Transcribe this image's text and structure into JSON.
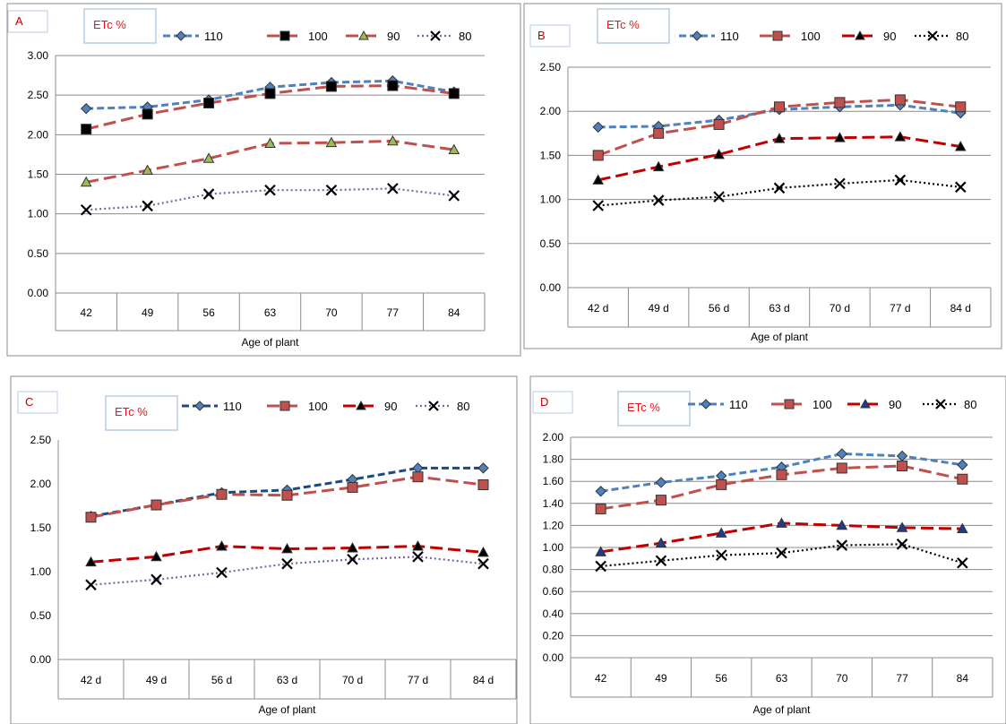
{
  "panels": [
    {
      "panel_label": "A",
      "legend_title": "ETc %",
      "chart_data": {
        "type": "line",
        "categories": [
          "42",
          "49",
          "56",
          "63",
          "70",
          "77",
          "84"
        ],
        "xlabel": "Age of plant",
        "ylabel": "",
        "ylim": [
          0,
          3
        ],
        "yticks": [
          "0.00",
          "0.50",
          "1.00",
          "1.50",
          "2.00",
          "2.50",
          "3.00"
        ],
        "grid": true,
        "legend_position": "top",
        "series": [
          {
            "name": "110",
            "values": [
              2.33,
              2.35,
              2.44,
              2.6,
              2.66,
              2.68,
              2.54
            ],
            "color": "#4f81bd",
            "marker": "diamond",
            "dash": "dash",
            "markerFill": "#4f81bd"
          },
          {
            "name": "100",
            "values": [
              2.07,
              2.26,
              2.4,
              2.52,
              2.61,
              2.62,
              2.52
            ],
            "color": "#c0504d",
            "marker": "square",
            "dash": "longdash",
            "markerFill": "#000000"
          },
          {
            "name": "90",
            "values": [
              1.4,
              1.55,
              1.7,
              1.89,
              1.9,
              1.92,
              1.81
            ],
            "color": "#c0504d",
            "marker": "triangle",
            "dash": "longdash",
            "markerFill": "#9bbb59"
          },
          {
            "name": "80",
            "values": [
              1.05,
              1.1,
              1.25,
              1.3,
              1.3,
              1.32,
              1.23
            ],
            "color": "#8064a2",
            "marker": "x",
            "dash": "dot",
            "markerFill": "#000000"
          }
        ]
      }
    },
    {
      "panel_label": "B",
      "legend_title": "ETc %",
      "chart_data": {
        "type": "line",
        "categories": [
          "42 d",
          "49 d",
          "56 d",
          "63 d",
          "70 d",
          "77 d",
          "84 d"
        ],
        "xlabel": "Age of plant",
        "ylabel": "",
        "ylim": [
          0,
          2.5
        ],
        "yticks": [
          "0.00",
          "0.50",
          "1.00",
          "1.50",
          "2.00",
          "2.50"
        ],
        "grid": true,
        "legend_position": "top",
        "series": [
          {
            "name": "110",
            "values": [
              1.82,
              1.83,
              1.9,
              2.02,
              2.05,
              2.07,
              1.98
            ],
            "color": "#4f81bd",
            "marker": "diamond",
            "dash": "dash",
            "markerFill": "#4f81bd"
          },
          {
            "name": "100",
            "values": [
              1.5,
              1.75,
              1.85,
              2.05,
              2.1,
              2.13,
              2.05
            ],
            "color": "#c0504d",
            "marker": "square",
            "dash": "longdash",
            "markerFill": "#c0504d"
          },
          {
            "name": "90",
            "values": [
              1.22,
              1.37,
              1.51,
              1.69,
              1.7,
              1.71,
              1.6
            ],
            "color": "#c00000",
            "marker": "triangle",
            "dash": "longdash",
            "markerFill": "#000000"
          },
          {
            "name": "80",
            "values": [
              0.93,
              0.99,
              1.03,
              1.13,
              1.18,
              1.22,
              1.14
            ],
            "color": "#000000",
            "marker": "x",
            "dash": "dot",
            "markerFill": "#000000"
          }
        ]
      }
    },
    {
      "panel_label": "C",
      "legend_title": "ETc %",
      "chart_data": {
        "type": "line",
        "categories": [
          "42 d",
          "49 d",
          "56 d",
          "63 d",
          "70 d",
          "77 d",
          "84 d"
        ],
        "xlabel": "Age of plant",
        "ylabel": "",
        "ylim": [
          0,
          2.5
        ],
        "yticks": [
          "0.00",
          "0.50",
          "1.00",
          "1.50",
          "2.00",
          "2.50"
        ],
        "grid": false,
        "legend_position": "top",
        "series": [
          {
            "name": "110",
            "values": [
              1.63,
              1.76,
              1.9,
              1.93,
              2.05,
              2.18,
              2.18
            ],
            "color": "#1f497d",
            "marker": "diamond",
            "dash": "dash",
            "markerFill": "#4f81bd"
          },
          {
            "name": "100",
            "values": [
              1.62,
              1.76,
              1.88,
              1.87,
              1.96,
              2.08,
              1.99
            ],
            "color": "#c0504d",
            "marker": "square",
            "dash": "longdash",
            "markerFill": "#c0504d"
          },
          {
            "name": "90",
            "values": [
              1.11,
              1.17,
              1.29,
              1.26,
              1.27,
              1.29,
              1.22
            ],
            "color": "#c00000",
            "marker": "triangle",
            "dash": "longdash",
            "markerFill": "#000000"
          },
          {
            "name": "80",
            "values": [
              0.85,
              0.91,
              0.99,
              1.09,
              1.14,
              1.17,
              1.09
            ],
            "color": "#8064a2",
            "marker": "x",
            "dash": "dot",
            "markerFill": "#000000"
          }
        ]
      }
    },
    {
      "panel_label": "D",
      "legend_title": "ETc %",
      "chart_data": {
        "type": "line",
        "categories": [
          "42",
          "49",
          "56",
          "63",
          "70",
          "77",
          "84"
        ],
        "xlabel": "Age of plant",
        "ylabel": "",
        "ylim": [
          0,
          2
        ],
        "yticks": [
          "0.00",
          "0.20",
          "0.40",
          "0.60",
          "0.80",
          "1.00",
          "1.20",
          "1.40",
          "1.60",
          "1.80",
          "2.00"
        ],
        "grid": true,
        "legend_position": "top",
        "series": [
          {
            "name": "110",
            "values": [
              1.51,
              1.59,
              1.65,
              1.73,
              1.85,
              1.83,
              1.75
            ],
            "color": "#4f81bd",
            "marker": "diamond",
            "dash": "dash",
            "markerFill": "#4f81bd"
          },
          {
            "name": "100",
            "values": [
              1.35,
              1.43,
              1.57,
              1.66,
              1.72,
              1.74,
              1.62
            ],
            "color": "#c0504d",
            "marker": "square",
            "dash": "longdash",
            "markerFill": "#c0504d"
          },
          {
            "name": "90",
            "values": [
              0.96,
              1.04,
              1.13,
              1.22,
              1.2,
              1.18,
              1.17
            ],
            "color": "#c00000",
            "marker": "triangle",
            "dash": "longdash",
            "markerFill": "#1f3a93"
          },
          {
            "name": "80",
            "values": [
              0.83,
              0.88,
              0.93,
              0.95,
              1.02,
              1.03,
              0.86
            ],
            "color": "#000000",
            "marker": "x",
            "dash": "dot",
            "markerFill": "#000000"
          }
        ]
      }
    }
  ]
}
